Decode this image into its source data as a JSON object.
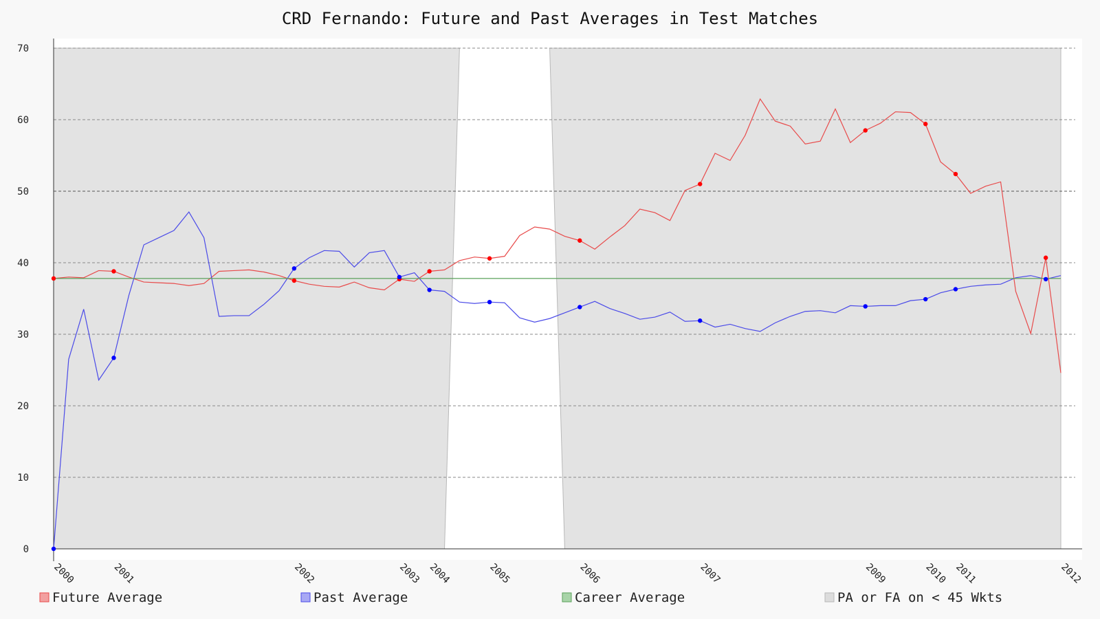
{
  "chart_data": {
    "type": "line",
    "title": "CRD Fernando: Future and Past Averages in Test Matches",
    "ylim": [
      0,
      70
    ],
    "yticks": [
      0,
      10,
      20,
      30,
      40,
      50,
      60,
      70
    ],
    "grid": true,
    "legend_position": "bottom",
    "x_tick_labels": [
      {
        "match": 1,
        "label": "2000"
      },
      {
        "match": 5,
        "label": "2001"
      },
      {
        "match": 17,
        "label": "2002"
      },
      {
        "match": 24,
        "label": "2003"
      },
      {
        "match": 26,
        "label": "2004"
      },
      {
        "match": 30,
        "label": "2005"
      },
      {
        "match": 36,
        "label": "2006"
      },
      {
        "match": 44,
        "label": "2007"
      },
      {
        "match": 55,
        "label": "2009"
      },
      {
        "match": 59,
        "label": "2010"
      },
      {
        "match": 61,
        "label": "2011"
      },
      {
        "match": 68,
        "label": "2012"
      }
    ],
    "series": [
      {
        "name": "Future Average",
        "color": "#e84a4a",
        "values": [
          37.8,
          38.0,
          37.9,
          38.9,
          38.8,
          38.0,
          37.3,
          37.2,
          37.1,
          36.8,
          37.1,
          38.8,
          38.9,
          39.0,
          38.7,
          38.2,
          37.5,
          37.0,
          36.7,
          36.6,
          37.3,
          36.5,
          36.2,
          37.7,
          37.4,
          38.8,
          39.0,
          40.3,
          40.8,
          40.6,
          40.9,
          43.8,
          45.0,
          44.7,
          43.7,
          43.1,
          41.9,
          43.6,
          45.2,
          47.5,
          47.0,
          45.9,
          50.1,
          51.0,
          55.3,
          54.3,
          57.8,
          62.9,
          59.8,
          59.1,
          56.6,
          57.0,
          61.5,
          56.8,
          58.5,
          59.5,
          61.1,
          61.0,
          59.4,
          54.1,
          52.4,
          49.7,
          50.7,
          51.3,
          36.0,
          30.1,
          40.7,
          24.6
        ],
        "markers_at": [
          1,
          5,
          17,
          24,
          26,
          30,
          36,
          44,
          55,
          59,
          61,
          67
        ]
      },
      {
        "name": "Past Average",
        "color": "#4a4ae8",
        "values": [
          0.0,
          26.5,
          33.5,
          23.6,
          26.7,
          35.4,
          42.5,
          43.5,
          44.5,
          47.1,
          43.5,
          32.5,
          32.6,
          32.6,
          34.2,
          36.1,
          39.2,
          40.7,
          41.7,
          41.6,
          39.4,
          41.4,
          41.7,
          38.0,
          38.6,
          36.2,
          36.0,
          34.5,
          34.3,
          34.5,
          34.4,
          32.3,
          31.7,
          32.2,
          33.0,
          33.8,
          34.6,
          33.6,
          32.9,
          32.1,
          32.4,
          33.1,
          31.8,
          31.9,
          31.0,
          31.4,
          30.8,
          30.4,
          31.6,
          32.5,
          33.2,
          33.3,
          33.0,
          34.0,
          33.9,
          34.0,
          34.0,
          34.7,
          34.9,
          35.8,
          36.3,
          36.7,
          36.9,
          37.0,
          37.9,
          38.2,
          37.7,
          38.2
        ],
        "markers_at": [
          1,
          5,
          17,
          24,
          26,
          30,
          36,
          44,
          55,
          59,
          61,
          67
        ]
      },
      {
        "name": "Career Average",
        "color": "#5aa05a",
        "values": [
          37.8,
          37.8
        ]
      }
    ],
    "shaded_region": {
      "name": "PA or FA on < 45 Wkts",
      "color": "#e3e3e3",
      "unshaded_gap": {
        "bottom_from_match": 27,
        "bottom_to_match": 35,
        "top_from_match": 28,
        "top_to_match": 34
      }
    }
  }
}
